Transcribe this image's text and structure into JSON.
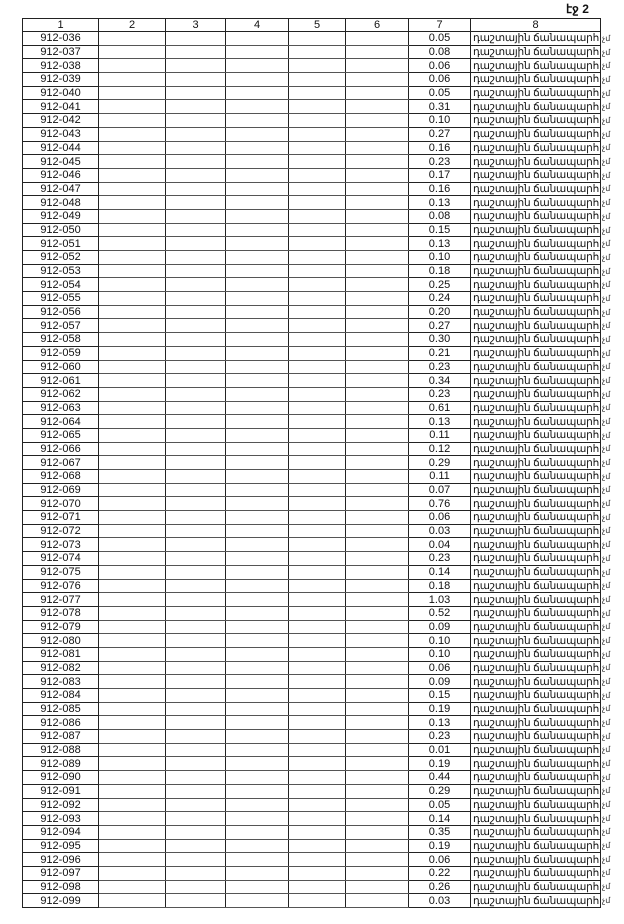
{
  "page_label": "էջ 2",
  "table": {
    "headers": [
      "1",
      "2",
      "3",
      "4",
      "5",
      "6",
      "7",
      "8"
    ],
    "land_type": "դաշտային ճանապարհ",
    "margin_mark": "չմ",
    "rows": [
      [
        "912-036",
        "0.05"
      ],
      [
        "912-037",
        "0.08"
      ],
      [
        "912-038",
        "0.06"
      ],
      [
        "912-039",
        "0.06"
      ],
      [
        "912-040",
        "0.05"
      ],
      [
        "912-041",
        "0.31"
      ],
      [
        "912-042",
        "0.10"
      ],
      [
        "912-043",
        "0.27"
      ],
      [
        "912-044",
        "0.16"
      ],
      [
        "912-045",
        "0.23"
      ],
      [
        "912-046",
        "0.17"
      ],
      [
        "912-047",
        "0.16"
      ],
      [
        "912-048",
        "0.13"
      ],
      [
        "912-049",
        "0.08"
      ],
      [
        "912-050",
        "0.15"
      ],
      [
        "912-051",
        "0.13"
      ],
      [
        "912-052",
        "0.10"
      ],
      [
        "912-053",
        "0.18"
      ],
      [
        "912-054",
        "0.25"
      ],
      [
        "912-055",
        "0.24"
      ],
      [
        "912-056",
        "0.20"
      ],
      [
        "912-057",
        "0.27"
      ],
      [
        "912-058",
        "0.30"
      ],
      [
        "912-059",
        "0.21"
      ],
      [
        "912-060",
        "0.23"
      ],
      [
        "912-061",
        "0.34"
      ],
      [
        "912-062",
        "0.23"
      ],
      [
        "912-063",
        "0.61"
      ],
      [
        "912-064",
        "0.13"
      ],
      [
        "912-065",
        "0.11"
      ],
      [
        "912-066",
        "0.12"
      ],
      [
        "912-067",
        "0.29"
      ],
      [
        "912-068",
        "0.11"
      ],
      [
        "912-069",
        "0.07"
      ],
      [
        "912-070",
        "0.76"
      ],
      [
        "912-071",
        "0.06"
      ],
      [
        "912-072",
        "0.03"
      ],
      [
        "912-073",
        "0.04"
      ],
      [
        "912-074",
        "0.23"
      ],
      [
        "912-075",
        "0.14"
      ],
      [
        "912-076",
        "0.18"
      ],
      [
        "912-077",
        "1.03"
      ],
      [
        "912-078",
        "0.52"
      ],
      [
        "912-079",
        "0.09"
      ],
      [
        "912-080",
        "0.10"
      ],
      [
        "912-081",
        "0.10"
      ],
      [
        "912-082",
        "0.06"
      ],
      [
        "912-083",
        "0.09"
      ],
      [
        "912-084",
        "0.15"
      ],
      [
        "912-085",
        "0.19"
      ],
      [
        "912-086",
        "0.13"
      ],
      [
        "912-087",
        "0.23"
      ],
      [
        "912-088",
        "0.01"
      ],
      [
        "912-089",
        "0.19"
      ],
      [
        "912-090",
        "0.44"
      ],
      [
        "912-091",
        "0.29"
      ],
      [
        "912-092",
        "0.05"
      ],
      [
        "912-093",
        "0.14"
      ],
      [
        "912-094",
        "0.35"
      ],
      [
        "912-095",
        "0.19"
      ],
      [
        "912-096",
        "0.06"
      ],
      [
        "912-097",
        "0.22"
      ],
      [
        "912-098",
        "0.26"
      ],
      [
        "912-099",
        "0.03"
      ]
    ]
  }
}
